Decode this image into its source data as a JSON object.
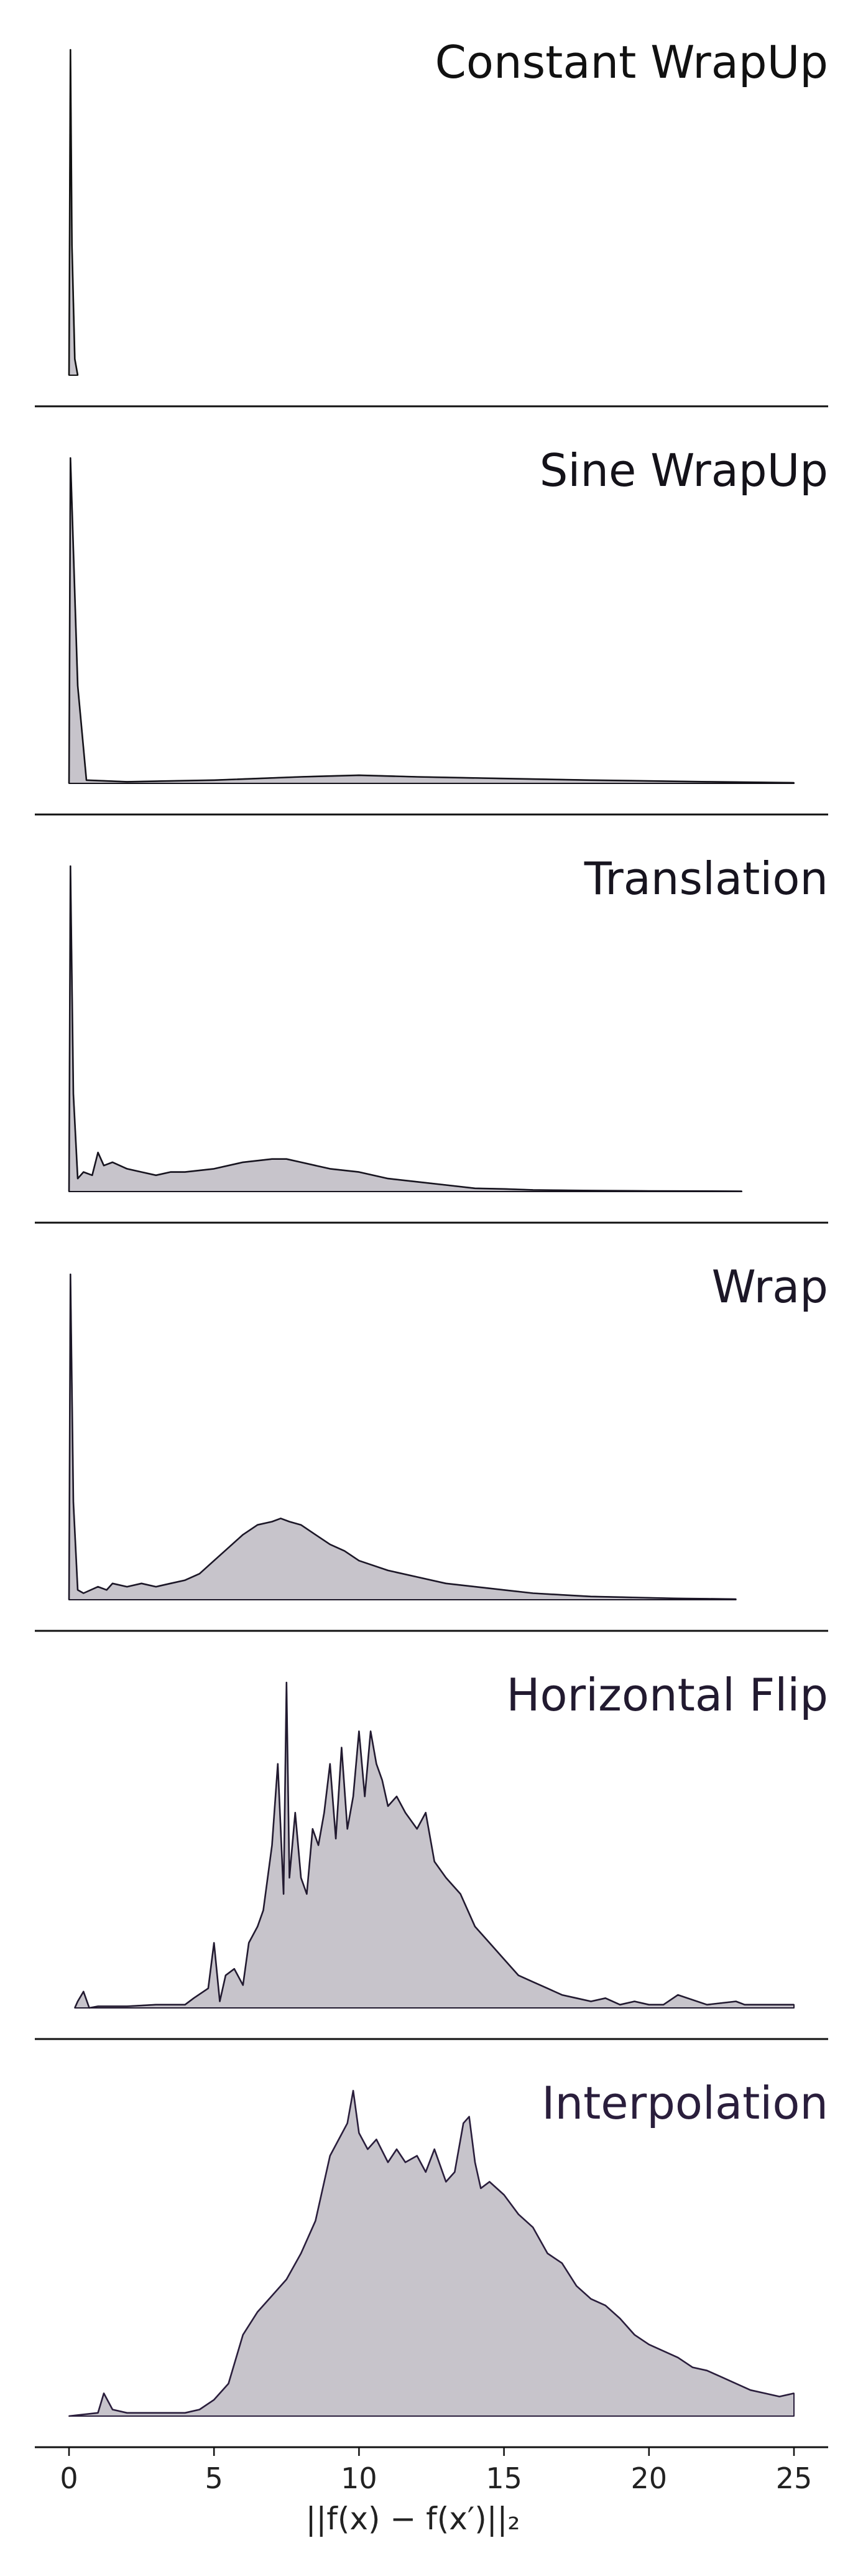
{
  "chart_data": [
    {
      "type": "area",
      "title": "Constant WrapUp",
      "color": "#111111",
      "fill": "#c4c1c8",
      "xlim": [
        0,
        25
      ],
      "ylim": [
        0,
        1
      ],
      "x": [
        0,
        0.05,
        0.1,
        0.2,
        0.3
      ],
      "values": [
        0,
        1,
        0.4,
        0.05,
        0
      ]
    },
    {
      "type": "area",
      "title": "Sine WrapUp",
      "color": "#141219",
      "fill": "#c4c1c8",
      "xlim": [
        0,
        25
      ],
      "ylim": [
        0,
        1
      ],
      "x": [
        0,
        0.05,
        0.3,
        0.6,
        2,
        5,
        8,
        10,
        12,
        15,
        18,
        22,
        25
      ],
      "values": [
        0,
        1,
        0.3,
        0.01,
        0.005,
        0.01,
        0.02,
        0.025,
        0.02,
        0.015,
        0.01,
        0.005,
        0.002
      ]
    },
    {
      "type": "area",
      "title": "Translation",
      "color": "#17141f",
      "fill": "#c4c1c8",
      "xlim": [
        0,
        25
      ],
      "ylim": [
        0,
        1
      ],
      "x": [
        0,
        0.05,
        0.15,
        0.3,
        0.5,
        0.8,
        1,
        1.2,
        1.5,
        2,
        2.5,
        3,
        3.5,
        4,
        5,
        6,
        7,
        7.5,
        8,
        9,
        10,
        11,
        12,
        13,
        14,
        15,
        16,
        18,
        20,
        23.2
      ],
      "values": [
        0,
        1,
        0.3,
        0.04,
        0.06,
        0.05,
        0.12,
        0.08,
        0.09,
        0.07,
        0.06,
        0.05,
        0.06,
        0.06,
        0.07,
        0.09,
        0.1,
        0.1,
        0.09,
        0.07,
        0.06,
        0.04,
        0.03,
        0.02,
        0.01,
        0.008,
        0.005,
        0.003,
        0.002,
        0.001
      ]
    },
    {
      "type": "area",
      "title": "Wrap",
      "color": "#1c1727",
      "fill": "#c4c1c8",
      "xlim": [
        0,
        25
      ],
      "ylim": [
        0,
        1
      ],
      "x": [
        0,
        0.05,
        0.15,
        0.3,
        0.5,
        1,
        1.3,
        1.5,
        2,
        2.5,
        3,
        3.5,
        4,
        4.5,
        5,
        5.5,
        6,
        6.5,
        7,
        7.3,
        7.6,
        8,
        8.5,
        9,
        9.5,
        10,
        11,
        12,
        13,
        14,
        15,
        16,
        17,
        18,
        19,
        20,
        21,
        22,
        23
      ],
      "values": [
        0,
        1,
        0.3,
        0.03,
        0.02,
        0.04,
        0.03,
        0.05,
        0.04,
        0.05,
        0.04,
        0.05,
        0.06,
        0.08,
        0.12,
        0.16,
        0.2,
        0.23,
        0.24,
        0.25,
        0.24,
        0.23,
        0.2,
        0.17,
        0.15,
        0.12,
        0.09,
        0.07,
        0.05,
        0.04,
        0.03,
        0.02,
        0.015,
        0.01,
        0.008,
        0.006,
        0.004,
        0.003,
        0.002
      ]
    },
    {
      "type": "area",
      "title": "Horizontal Flip",
      "color": "#221a30",
      "fill": "#c4c1c8",
      "xlim": [
        0,
        25
      ],
      "ylim": [
        0,
        1
      ],
      "x": [
        0.2,
        0.3,
        0.5,
        0.7,
        1,
        2,
        3,
        4,
        4.3,
        4.8,
        5,
        5.2,
        5.4,
        5.7,
        6,
        6.2,
        6.5,
        6.7,
        7,
        7.2,
        7.4,
        7.5,
        7.6,
        7.8,
        8,
        8.2,
        8.4,
        8.6,
        8.8,
        9,
        9.2,
        9.4,
        9.6,
        9.8,
        10,
        10.2,
        10.4,
        10.6,
        10.8,
        11,
        11.3,
        11.6,
        12,
        12.3,
        12.6,
        13,
        13.5,
        14,
        14.5,
        15,
        15.5,
        16,
        16.5,
        17,
        17.5,
        18,
        18.5,
        19,
        19.5,
        20,
        20.5,
        21,
        22,
        23,
        23.3,
        24,
        25
      ],
      "values": [
        0,
        0.02,
        0.05,
        0,
        0.005,
        0.005,
        0.01,
        0.01,
        0.03,
        0.06,
        0.2,
        0.02,
        0.1,
        0.12,
        0.07,
        0.2,
        0.25,
        0.3,
        0.5,
        0.75,
        0.35,
        1,
        0.4,
        0.6,
        0.4,
        0.35,
        0.55,
        0.5,
        0.6,
        0.75,
        0.52,
        0.8,
        0.55,
        0.65,
        0.85,
        0.65,
        0.85,
        0.75,
        0.7,
        0.62,
        0.65,
        0.6,
        0.55,
        0.6,
        0.45,
        0.4,
        0.35,
        0.25,
        0.2,
        0.15,
        0.1,
        0.08,
        0.06,
        0.04,
        0.03,
        0.02,
        0.03,
        0.01,
        0.02,
        0.01,
        0.01,
        0.04,
        0.01,
        0.02,
        0.01,
        0.01,
        0.01
      ]
    },
    {
      "type": "area",
      "title": "Interpolation",
      "color": "#2a1e3c",
      "fill": "#c4c1c8",
      "xlim": [
        0,
        25
      ],
      "ylim": [
        0,
        1
      ],
      "xlabel": "||f(x) − f(x′)||₂",
      "xticks": [
        0,
        5,
        10,
        15,
        20,
        25
      ],
      "x": [
        0,
        1,
        1.2,
        1.5,
        2,
        3,
        4,
        4.5,
        5,
        5.5,
        6,
        6.5,
        7,
        7.5,
        8,
        8.5,
        9,
        9.3,
        9.6,
        9.8,
        10,
        10.3,
        10.6,
        11,
        11.3,
        11.6,
        12,
        12.3,
        12.6,
        13,
        13.3,
        13.6,
        13.8,
        14,
        14.2,
        14.5,
        15,
        15.5,
        16,
        16.5,
        17,
        17.5,
        18,
        18.5,
        19,
        19.5,
        20,
        20.5,
        21,
        21.5,
        22,
        22.5,
        23,
        23.5,
        24,
        24.5,
        25
      ],
      "values": [
        0,
        0.01,
        0.07,
        0.02,
        0.01,
        0.01,
        0.01,
        0.02,
        0.05,
        0.1,
        0.25,
        0.32,
        0.37,
        0.42,
        0.5,
        0.6,
        0.8,
        0.85,
        0.9,
        1,
        0.87,
        0.82,
        0.85,
        0.78,
        0.82,
        0.78,
        0.8,
        0.75,
        0.82,
        0.72,
        0.75,
        0.9,
        0.92,
        0.78,
        0.7,
        0.72,
        0.68,
        0.62,
        0.58,
        0.5,
        0.47,
        0.4,
        0.36,
        0.34,
        0.3,
        0.25,
        0.22,
        0.2,
        0.18,
        0.15,
        0.14,
        0.12,
        0.1,
        0.08,
        0.07,
        0.06,
        0.07
      ]
    }
  ]
}
